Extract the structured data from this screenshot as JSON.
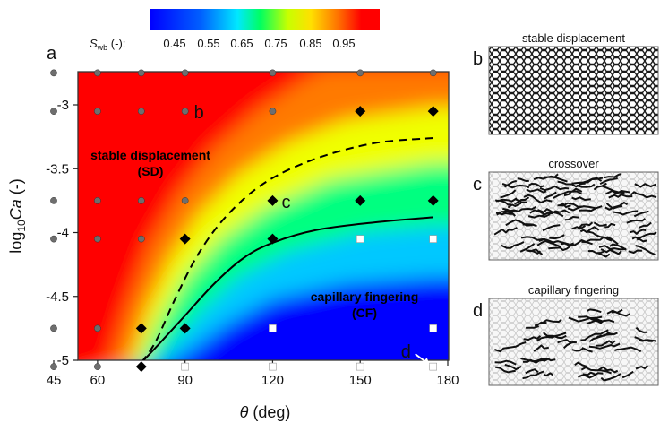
{
  "chart_data": {
    "type": "heatmap",
    "title": "",
    "xlabel": {
      "symbol": "θ",
      "unit": " (deg)"
    },
    "ylabel": {
      "prefix": "log",
      "sub": "10",
      "symbol": "Ca",
      "unit": " (-)"
    },
    "xlim": [
      40,
      180
    ],
    "ylim": [
      -5.1,
      -2.65
    ],
    "xticks": [
      45,
      60,
      90,
      120,
      150,
      180
    ],
    "yticks": [
      -3,
      -3.5,
      -4,
      -4.5,
      -5
    ],
    "ytick_labels": [
      "-3",
      "-3.5",
      "-4",
      "-4.5",
      "-5"
    ],
    "colorbar": {
      "label_symbol": "S",
      "label_sub": "wb",
      "label_unit": " (-):",
      "ticks": [
        "0.45",
        "0.55",
        "0.65",
        "0.75",
        "0.85",
        "0.95"
      ],
      "range": [
        0.45,
        0.95
      ]
    },
    "region_labels": {
      "sd_title": "stable displacement",
      "sd_abbr": "(SD)",
      "cf_title": "capillary fingering",
      "cf_abbr": "(CF)",
      "sd_color": "#9b0000",
      "cf_color": "#ffffff"
    },
    "boundary_curves": [
      {
        "style": "dashed",
        "points": [
          [
            75,
            -5.02
          ],
          [
            80,
            -4.85
          ],
          [
            87,
            -4.5
          ],
          [
            95,
            -4.15
          ],
          [
            105,
            -3.85
          ],
          [
            118,
            -3.6
          ],
          [
            135,
            -3.42
          ],
          [
            155,
            -3.3
          ],
          [
            175,
            -3.26
          ]
        ]
      },
      {
        "style": "solid",
        "points": [
          [
            75,
            -5.02
          ],
          [
            82,
            -4.85
          ],
          [
            90,
            -4.65
          ],
          [
            100,
            -4.4
          ],
          [
            110,
            -4.2
          ],
          [
            120,
            -4.08
          ],
          [
            135,
            -3.98
          ],
          [
            155,
            -3.92
          ],
          [
            175,
            -3.88
          ]
        ]
      }
    ],
    "field_contours": [
      {
        "level": 0.9,
        "points": [
          [
            64,
            -5.05
          ],
          [
            70,
            -4.6
          ],
          [
            78,
            -4.1
          ],
          [
            88,
            -3.7
          ],
          [
            100,
            -3.35
          ],
          [
            115,
            -3.05
          ],
          [
            130,
            -2.82
          ],
          [
            138,
            -2.72
          ]
        ]
      },
      {
        "level": 0.8,
        "points": [
          [
            71,
            -5.05
          ],
          [
            77,
            -4.6
          ],
          [
            85,
            -4.2
          ],
          [
            95,
            -3.85
          ],
          [
            108,
            -3.55
          ],
          [
            125,
            -3.3
          ],
          [
            145,
            -3.12
          ],
          [
            175,
            -3.02
          ]
        ]
      },
      {
        "level": 0.7,
        "points": [
          [
            74,
            -5.05
          ],
          [
            81,
            -4.7
          ],
          [
            90,
            -4.35
          ],
          [
            102,
            -4.05
          ],
          [
            118,
            -3.8
          ],
          [
            140,
            -3.58
          ],
          [
            175,
            -3.45
          ]
        ]
      },
      {
        "level": 0.6,
        "points": [
          [
            77,
            -5.05
          ],
          [
            86,
            -4.85
          ],
          [
            96,
            -4.6
          ],
          [
            108,
            -4.35
          ],
          [
            125,
            -4.15
          ],
          [
            150,
            -4.0
          ],
          [
            175,
            -3.95
          ]
        ]
      },
      {
        "level": 0.5,
        "points": [
          [
            82,
            -5.05
          ],
          [
            92,
            -4.92
          ],
          [
            104,
            -4.72
          ],
          [
            120,
            -4.52
          ],
          [
            145,
            -4.4
          ],
          [
            175,
            -4.35
          ]
        ]
      }
    ],
    "series": [
      {
        "name": "SD",
        "marker": "gray-circle",
        "color": "#6e6e6e",
        "points": [
          [
            45,
            -2.75
          ],
          [
            60,
            -2.75
          ],
          [
            75,
            -2.75
          ],
          [
            90,
            -2.75
          ],
          [
            120,
            -2.75
          ],
          [
            150,
            -2.75
          ],
          [
            175,
            -2.75
          ],
          [
            45,
            -3.05
          ],
          [
            60,
            -3.05
          ],
          [
            75,
            -3.05
          ],
          [
            90,
            -3.05
          ],
          [
            120,
            -3.05
          ],
          [
            45,
            -3.75
          ],
          [
            60,
            -3.75
          ],
          [
            75,
            -3.75
          ],
          [
            90,
            -3.75
          ],
          [
            45,
            -4.05
          ],
          [
            60,
            -4.05
          ],
          [
            75,
            -4.05
          ],
          [
            45,
            -4.75
          ],
          [
            60,
            -4.75
          ],
          [
            45,
            -5.05
          ],
          [
            60,
            -5.05
          ]
        ]
      },
      {
        "name": "crossover",
        "marker": "black-diamond",
        "color": "#000000",
        "points": [
          [
            150,
            -3.05
          ],
          [
            175,
            -3.05
          ],
          [
            120,
            -3.75
          ],
          [
            150,
            -3.75
          ],
          [
            175,
            -3.75
          ],
          [
            90,
            -4.05
          ],
          [
            120,
            -4.05
          ],
          [
            75,
            -4.75
          ],
          [
            90,
            -4.75
          ],
          [
            75,
            -5.05
          ]
        ]
      },
      {
        "name": "CF",
        "marker": "white-square",
        "color": "#ffffff",
        "points": [
          [
            150,
            -4.05
          ],
          [
            175,
            -4.05
          ],
          [
            120,
            -4.75
          ],
          [
            175,
            -4.75
          ],
          [
            90,
            -5.05
          ],
          [
            120,
            -5.05
          ],
          [
            150,
            -5.05
          ],
          [
            175,
            -5.05
          ]
        ]
      }
    ],
    "point_labels": [
      {
        "text": "b",
        "x": 90,
        "y": -3.05
      },
      {
        "text": "c",
        "x": 120,
        "y": -3.75
      },
      {
        "text": "d",
        "x": 175,
        "y": -5.05
      }
    ]
  },
  "panels": {
    "main_letter": "a",
    "side": [
      {
        "letter": "b",
        "title": "stable displacement",
        "density": "dense"
      },
      {
        "letter": "c",
        "title": "crossover",
        "density": "branchy"
      },
      {
        "letter": "d",
        "title": "capillary fingering",
        "density": "sparse"
      }
    ]
  }
}
